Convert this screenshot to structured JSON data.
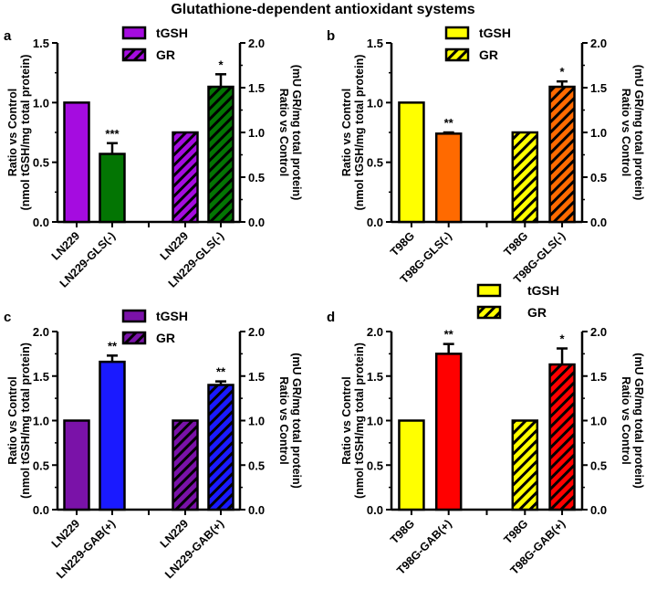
{
  "title": "Glutathione-dependent antioxidant systems",
  "chart_data": [
    {
      "type": "bar",
      "panel": "a",
      "title": "",
      "ylabel_left": [
        "Ratio vs Control",
        "(nmol tGSH/mg total protein)"
      ],
      "ylabel_right": [
        "Ratio vs Control",
        "(mU GR/mg total protein)"
      ],
      "ylim_left": [
        0,
        1.5
      ],
      "yticks_left": [
        "0.0",
        "0.5",
        "1.0",
        "1.5"
      ],
      "ylim_right": [
        0,
        2.0
      ],
      "yticks_right": [
        "0.0",
        "0.5",
        "1.0",
        "1.5",
        "2.0"
      ],
      "legend": [
        "tGSH",
        "GR"
      ],
      "legend_placement": "top-center",
      "colors": {
        "control": "#a50ce0",
        "treated": "#037503"
      },
      "bars": [
        {
          "category": "LN229",
          "series": "tGSH",
          "value": 1.0,
          "error": null,
          "sig": ""
        },
        {
          "category": "LN229-GLS(-)",
          "series": "tGSH",
          "value": 0.57,
          "error": 0.09,
          "sig": "***"
        },
        {
          "category": "LN229",
          "series": "GR",
          "value": 1.0,
          "error": null,
          "sig": ""
        },
        {
          "category": "LN229-GLS(-)",
          "series": "GR",
          "value": 1.51,
          "error": 0.14,
          "sig": "*"
        }
      ]
    },
    {
      "type": "bar",
      "panel": "b",
      "title": "",
      "ylabel_left": [
        "Ratio vs Control",
        "(nmol tGSH/mg total protein)"
      ],
      "ylabel_right": [
        "Ratio vs Control",
        "(mU GR/mg total protein)"
      ],
      "ylim_left": [
        0,
        1.5
      ],
      "yticks_left": [
        "0.0",
        "0.5",
        "1.0",
        "1.5"
      ],
      "ylim_right": [
        0,
        2.0
      ],
      "yticks_right": [
        "0.0",
        "0.5",
        "1.0",
        "1.5",
        "2.0"
      ],
      "legend": [
        "tGSH",
        "GR"
      ],
      "legend_placement": "top-center",
      "colors": {
        "control": "#ffff00",
        "treated": "#ff6a00"
      },
      "bars": [
        {
          "category": "T98G",
          "series": "tGSH",
          "value": 1.0,
          "error": null,
          "sig": ""
        },
        {
          "category": "T98G-GLS(-)",
          "series": "tGSH",
          "value": 0.74,
          "error": 0.01,
          "sig": "**"
        },
        {
          "category": "T98G",
          "series": "GR",
          "value": 1.0,
          "error": null,
          "sig": ""
        },
        {
          "category": "T98G-GLS(-)",
          "series": "GR",
          "value": 1.51,
          "error": 0.06,
          "sig": "*"
        }
      ]
    },
    {
      "type": "bar",
      "panel": "c",
      "title": "",
      "ylabel_left": [
        "Ratio vs Control",
        "(nmol tGSH/mg total protein)"
      ],
      "ylabel_right": [
        "Ratio vs Control",
        "(mU GR/mg total protein)"
      ],
      "ylim_left": [
        0,
        2.0
      ],
      "yticks_left": [
        "0.0",
        "0.5",
        "1.0",
        "1.5",
        "2.0"
      ],
      "ylim_right": [
        0,
        2.0
      ],
      "yticks_right": [
        "0.0",
        "0.5",
        "1.0",
        "1.5",
        "2.0"
      ],
      "legend": [
        "tGSH",
        "GR"
      ],
      "legend_placement": "top-center",
      "colors": {
        "control": "#7a12a8",
        "treated": "#1a1aff"
      },
      "bars": [
        {
          "category": "LN229",
          "series": "tGSH",
          "value": 1.0,
          "error": null,
          "sig": ""
        },
        {
          "category": "LN229-GAB(+)",
          "series": "tGSH",
          "value": 1.66,
          "error": 0.07,
          "sig": "**"
        },
        {
          "category": "LN229",
          "series": "GR",
          "value": 1.0,
          "error": null,
          "sig": ""
        },
        {
          "category": "LN229-GAB(+)",
          "series": "GR",
          "value": 1.4,
          "error": 0.04,
          "sig": "**"
        }
      ]
    },
    {
      "type": "bar",
      "panel": "d",
      "title": "",
      "ylabel_left": [
        "Ratio vs Control",
        "(nmol tGSH/mg total protein)"
      ],
      "ylabel_right": [
        "Ratio vs Control",
        "(mU GR/mg total protein)"
      ],
      "ylim_left": [
        0,
        2.0
      ],
      "yticks_left": [
        "0.0",
        "0.5",
        "1.0",
        "1.5",
        "2.0"
      ],
      "ylim_right": [
        0,
        2.0
      ],
      "yticks_right": [
        "0.0",
        "0.5",
        "1.0",
        "1.5",
        "2.0"
      ],
      "legend": [
        "tGSH",
        "GR"
      ],
      "legend_placement": "top-center",
      "colors": {
        "control": "#ffff00",
        "treated": "#ff0000"
      },
      "bars": [
        {
          "category": "T98G",
          "series": "tGSH",
          "value": 1.0,
          "error": null,
          "sig": ""
        },
        {
          "category": "T98G-GAB(+)",
          "series": "tGSH",
          "value": 1.75,
          "error": 0.11,
          "sig": "**"
        },
        {
          "category": "T98G",
          "series": "GR",
          "value": 1.0,
          "error": null,
          "sig": ""
        },
        {
          "category": "T98G-GAB(+)",
          "series": "GR",
          "value": 1.63,
          "error": 0.18,
          "sig": "*"
        }
      ]
    }
  ]
}
